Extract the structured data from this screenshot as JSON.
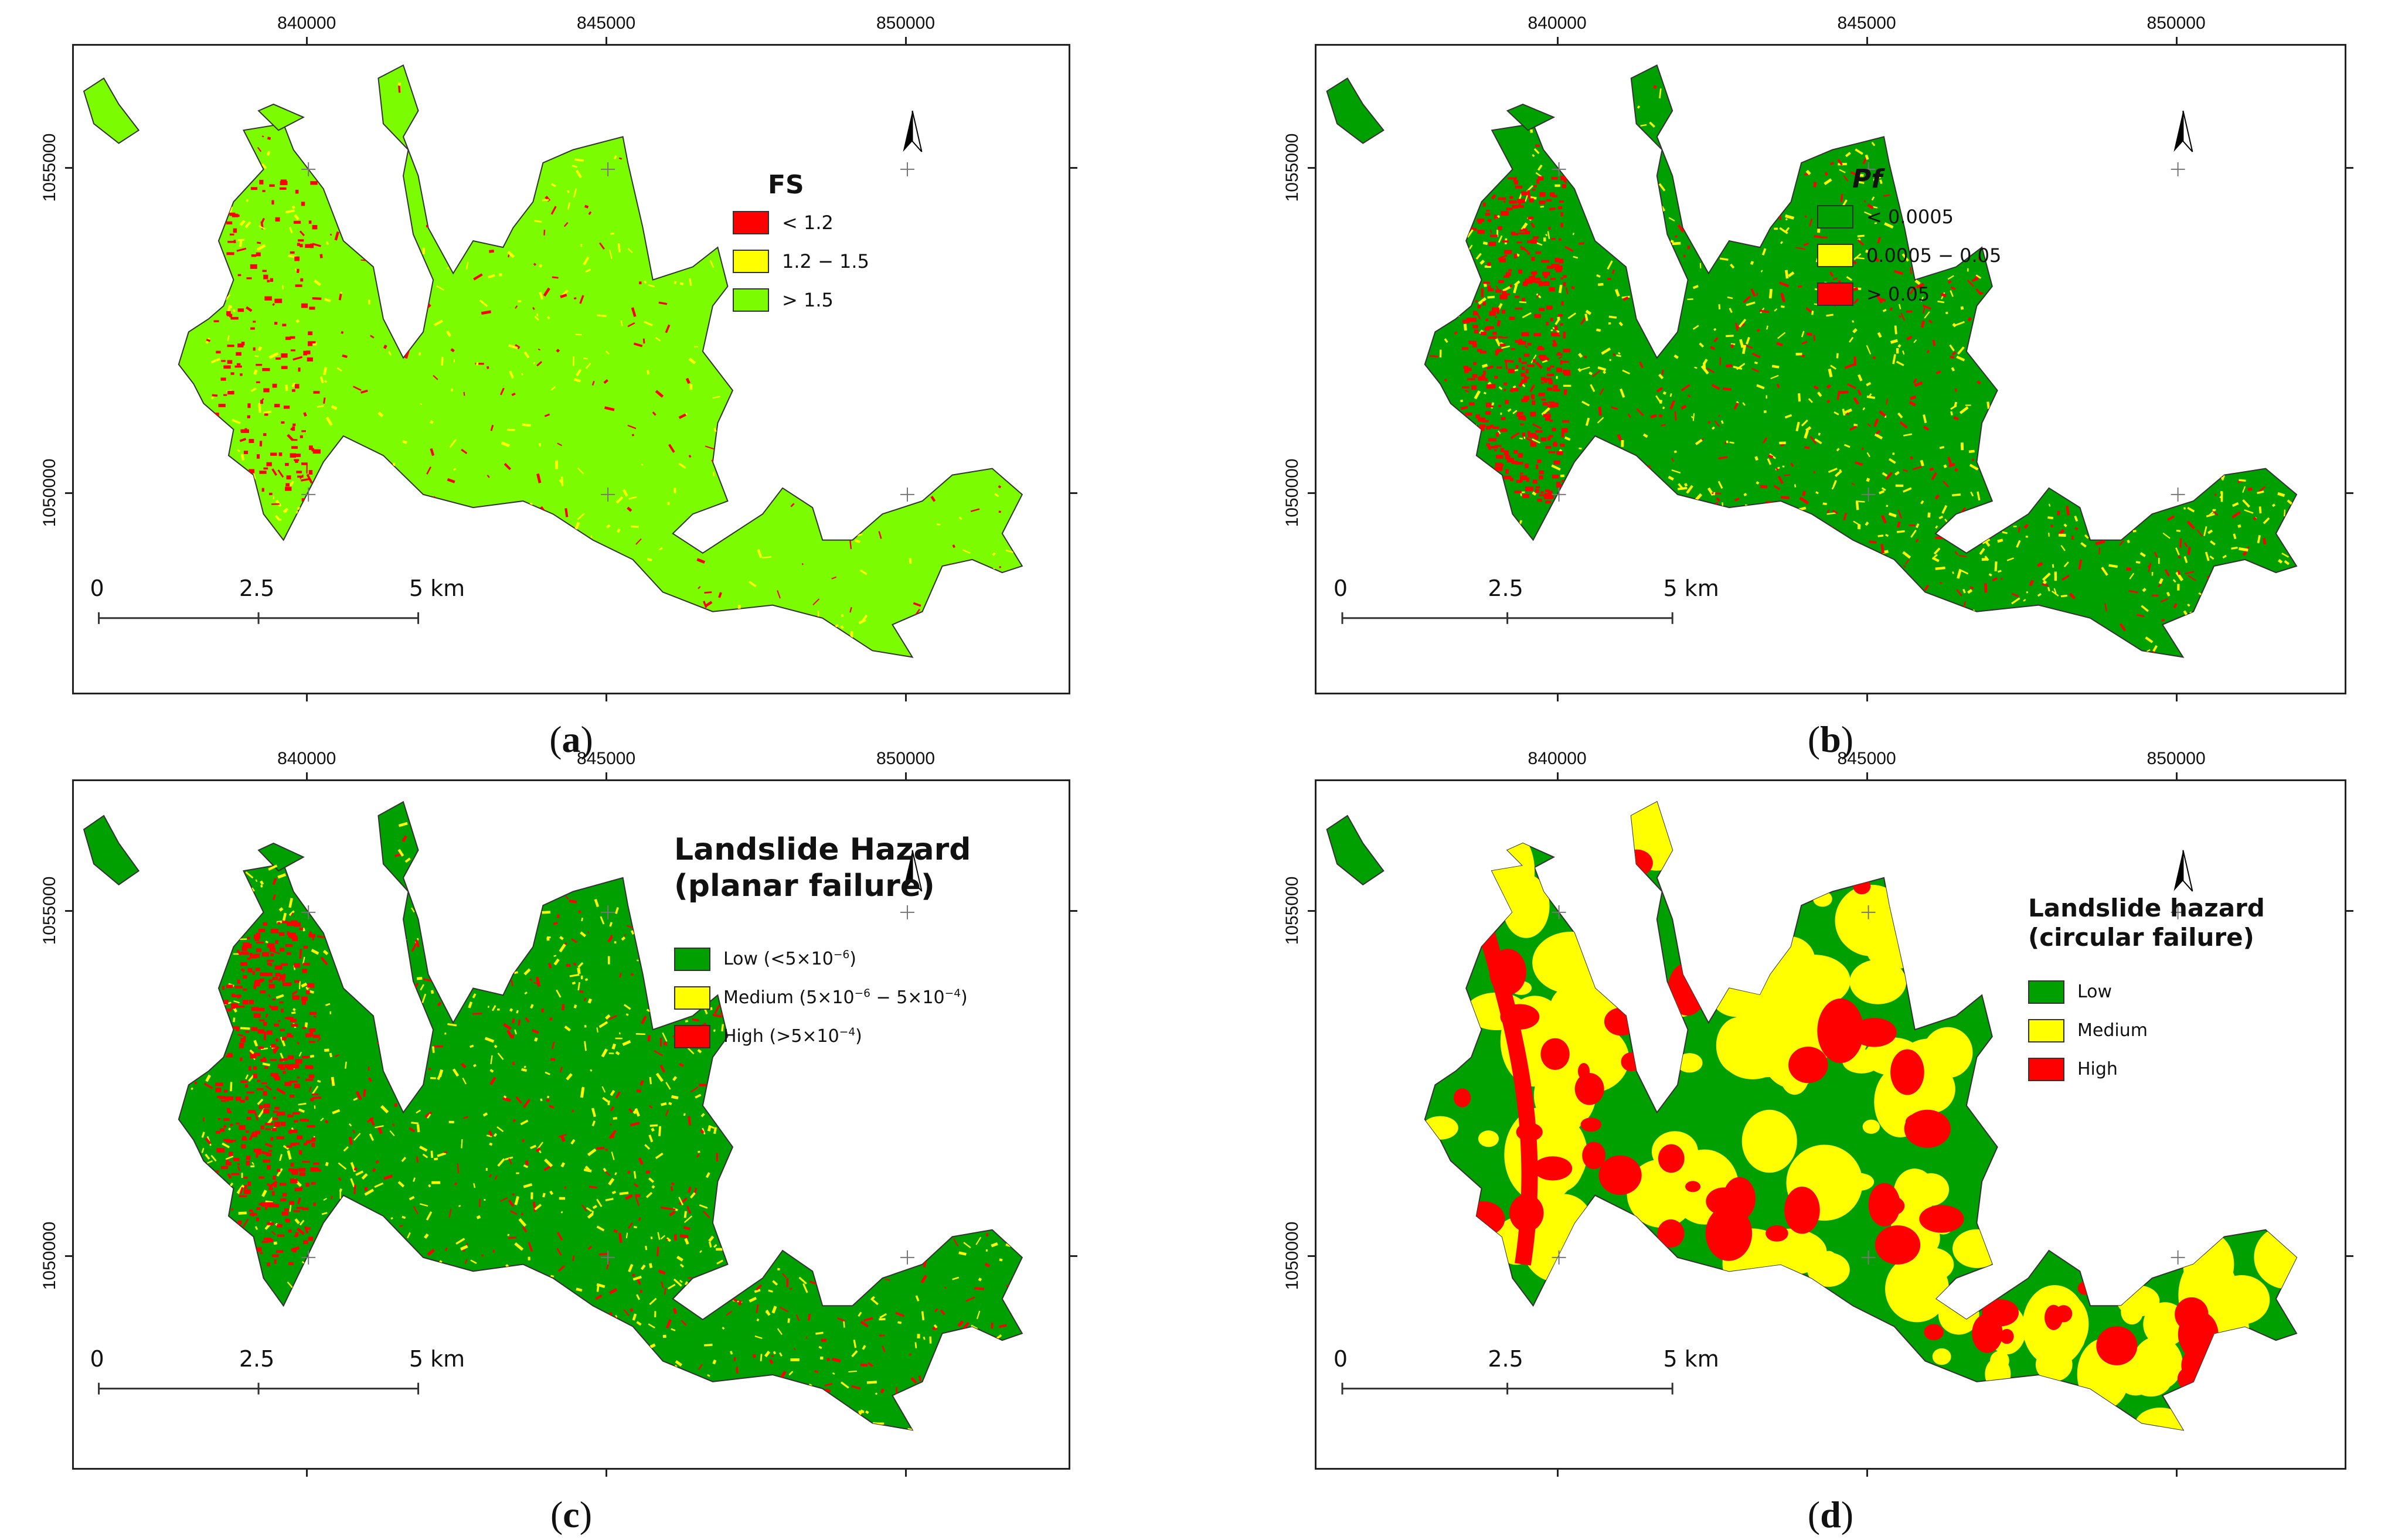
{
  "map_common": {
    "x_ticks": [
      "840000",
      "845000",
      "850000"
    ],
    "y_ticks": [
      "1055000",
      "1050000"
    ],
    "scale_labels": [
      "0",
      "2.5",
      "5 km"
    ],
    "north_label": "N"
  },
  "panels": [
    {
      "id": "a",
      "caption": "a",
      "legend_title": "FS",
      "legend_title2": "",
      "items": [
        {
          "label": "< 1.2",
          "color": "#ff0000"
        },
        {
          "label": "1.2 − 1.5",
          "color": "#ffff00"
        },
        {
          "label": "> 1.5",
          "color": "#7cfc00"
        }
      ],
      "base_color": "#7cfc00",
      "mix": [
        "#ff0000",
        "#ffff00"
      ]
    },
    {
      "id": "b",
      "caption": "b",
      "legend_title": "Pf",
      "legend_title2": "",
      "items": [
        {
          "label": "< 0.0005",
          "color": "#00a000"
        },
        {
          "label": "0.0005 − 0.05",
          "color": "#ffff00"
        },
        {
          "label": "> 0.05",
          "color": "#ff0000"
        }
      ],
      "base_color": "#00a000",
      "mix": [
        "#ffff00",
        "#ff0000"
      ]
    },
    {
      "id": "c",
      "caption": "c",
      "legend_title": "Landslide Hazard",
      "legend_title2": "(planar failure)",
      "items": [
        {
          "label": "Low (<5×10",
          "sup": "−6",
          "tail": ")",
          "color": "#00a000"
        },
        {
          "label": "Medium (5×10",
          "sup": "−6",
          "mid": " − 5×10",
          "sup2": "−4",
          "tail": ")",
          "color": "#ffff00"
        },
        {
          "label": "High (>5×10",
          "sup": "−4",
          "tail": ")",
          "color": "#ff0000"
        }
      ],
      "base_color": "#00a000",
      "mix": [
        "#ffff00",
        "#ff0000"
      ]
    },
    {
      "id": "d",
      "caption": "d",
      "legend_title": "Landslide hazard",
      "legend_title2": "(circular failure)",
      "items": [
        {
          "label": "Low",
          "color": "#00a000"
        },
        {
          "label": "Medium",
          "color": "#ffff00"
        },
        {
          "label": "High",
          "color": "#ff0000"
        }
      ],
      "base_color": "#00a000",
      "mix": [
        "#ffff00",
        "#ff0000"
      ]
    }
  ]
}
